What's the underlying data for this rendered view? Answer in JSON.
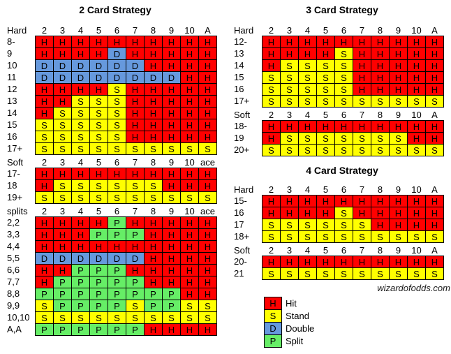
{
  "colors": {
    "H": "#FF0000",
    "S": "#FFFF00",
    "D": "#6699DD",
    "P": "#66EE66",
    "grid_border": "#000000"
  },
  "watermark": "wizardofodds.com",
  "legend": {
    "items": [
      {
        "letter": "H",
        "label": "Hit"
      },
      {
        "letter": "S",
        "label": "Stand"
      },
      {
        "letter": "D",
        "label": "Double"
      },
      {
        "letter": "P",
        "label": "Split"
      }
    ]
  },
  "chart_data": [
    {
      "type": "table",
      "title": "2 Card Strategy",
      "sections": [
        {
          "header_label": "Hard",
          "columns": [
            "2",
            "3",
            "4",
            "5",
            "6",
            "7",
            "8",
            "9",
            "10",
            "A"
          ],
          "rows": [
            {
              "label": "8-",
              "cells": [
                "H",
                "H",
                "H",
                "H",
                "H",
                "H",
                "H",
                "H",
                "H",
                "H"
              ]
            },
            {
              "label": "9",
              "cells": [
                "H",
                "H",
                "H",
                "H",
                "D",
                "H",
                "H",
                "H",
                "H",
                "H"
              ]
            },
            {
              "label": "10",
              "cells": [
                "D",
                "D",
                "D",
                "D",
                "D",
                "D",
                "H",
                "H",
                "H",
                "H"
              ]
            },
            {
              "label": "11",
              "cells": [
                "D",
                "D",
                "D",
                "D",
                "D",
                "D",
                "D",
                "D",
                "H",
                "H"
              ]
            },
            {
              "label": "12",
              "cells": [
                "H",
                "H",
                "H",
                "H",
                "S",
                "H",
                "H",
                "H",
                "H",
                "H"
              ]
            },
            {
              "label": "13",
              "cells": [
                "H",
                "H",
                "S",
                "S",
                "S",
                "H",
                "H",
                "H",
                "H",
                "H"
              ]
            },
            {
              "label": "14",
              "cells": [
                "H",
                "S",
                "S",
                "S",
                "S",
                "H",
                "H",
                "H",
                "H",
                "H"
              ]
            },
            {
              "label": "15",
              "cells": [
                "S",
                "S",
                "S",
                "S",
                "S",
                "H",
                "H",
                "H",
                "H",
                "H"
              ]
            },
            {
              "label": "16",
              "cells": [
                "S",
                "S",
                "S",
                "S",
                "S",
                "H",
                "H",
                "H",
                "H",
                "H"
              ]
            },
            {
              "label": "17+",
              "cells": [
                "S",
                "S",
                "S",
                "S",
                "S",
                "S",
                "S",
                "S",
                "S",
                "S"
              ]
            }
          ]
        },
        {
          "header_label": "Soft",
          "columns": [
            "2",
            "3",
            "4",
            "5",
            "6",
            "7",
            "8",
            "9",
            "10",
            "ace"
          ],
          "rows": [
            {
              "label": "17-",
              "cells": [
                "H",
                "H",
                "H",
                "H",
                "H",
                "H",
                "H",
                "H",
                "H",
                "H"
              ]
            },
            {
              "label": "18",
              "cells": [
                "H",
                "S",
                "S",
                "S",
                "S",
                "S",
                "S",
                "H",
                "H",
                "H"
              ]
            },
            {
              "label": "19+",
              "cells": [
                "S",
                "S",
                "S",
                "S",
                "S",
                "S",
                "S",
                "S",
                "S",
                "S"
              ]
            }
          ]
        },
        {
          "header_label": "splits",
          "columns": [
            "2",
            "3",
            "4",
            "5",
            "6",
            "7",
            "8",
            "9",
            "10",
            "ace"
          ],
          "rows": [
            {
              "label": "2,2",
              "cells": [
                "H",
                "H",
                "H",
                "H",
                "P",
                "H",
                "H",
                "H",
                "H",
                "H"
              ]
            },
            {
              "label": "3,3",
              "cells": [
                "H",
                "H",
                "H",
                "P",
                "P",
                "P",
                "H",
                "H",
                "H",
                "H"
              ]
            },
            {
              "label": "4,4",
              "cells": [
                "H",
                "H",
                "H",
                "H",
                "H",
                "H",
                "H",
                "H",
                "H",
                "H"
              ]
            },
            {
              "label": "5,5",
              "cells": [
                "D",
                "D",
                "D",
                "D",
                "D",
                "D",
                "H",
                "H",
                "H",
                "H"
              ]
            },
            {
              "label": "6,6",
              "cells": [
                "H",
                "H",
                "P",
                "P",
                "P",
                "H",
                "H",
                "H",
                "H",
                "H"
              ]
            },
            {
              "label": "7,7",
              "cells": [
                "H",
                "P",
                "P",
                "P",
                "P",
                "P",
                "H",
                "H",
                "H",
                "H"
              ]
            },
            {
              "label": "8,8",
              "cells": [
                "P",
                "P",
                "P",
                "P",
                "P",
                "P",
                "P",
                "P",
                "H",
                "H"
              ]
            },
            {
              "label": "9,9",
              "cells": [
                "S",
                "P",
                "P",
                "P",
                "P",
                "S",
                "P",
                "P",
                "S",
                "S"
              ]
            },
            {
              "label": "10,10",
              "cells": [
                "S",
                "S",
                "S",
                "S",
                "S",
                "S",
                "S",
                "S",
                "S",
                "S"
              ]
            },
            {
              "label": "A,A",
              "cells": [
                "P",
                "P",
                "P",
                "P",
                "P",
                "P",
                "H",
                "H",
                "H",
                "H"
              ]
            }
          ]
        }
      ]
    },
    {
      "type": "table",
      "title": "3 Card Strategy",
      "sections": [
        {
          "header_label": "Hard",
          "columns": [
            "2",
            "3",
            "4",
            "5",
            "6",
            "7",
            "8",
            "9",
            "10",
            "A"
          ],
          "rows": [
            {
              "label": "12-",
              "cells": [
                "H",
                "H",
                "H",
                "H",
                "H",
                "H",
                "H",
                "H",
                "H",
                "H"
              ]
            },
            {
              "label": "13",
              "cells": [
                "H",
                "H",
                "H",
                "H",
                "S",
                "H",
                "H",
                "H",
                "H",
                "H"
              ]
            },
            {
              "label": "14",
              "cells": [
                "H",
                "S",
                "S",
                "S",
                "S",
                "H",
                "H",
                "H",
                "H",
                "H"
              ]
            },
            {
              "label": "15",
              "cells": [
                "S",
                "S",
                "S",
                "S",
                "S",
                "H",
                "H",
                "H",
                "H",
                "H"
              ]
            },
            {
              "label": "16",
              "cells": [
                "S",
                "S",
                "S",
                "S",
                "S",
                "H",
                "H",
                "H",
                "H",
                "H"
              ]
            },
            {
              "label": "17+",
              "cells": [
                "S",
                "S",
                "S",
                "S",
                "S",
                "S",
                "S",
                "S",
                "S",
                "S"
              ]
            }
          ]
        },
        {
          "header_label": "Soft",
          "columns": [
            "2",
            "3",
            "4",
            "5",
            "6",
            "7",
            "8",
            "9",
            "10",
            "A"
          ],
          "rows": [
            {
              "label": "18-",
              "cells": [
                "H",
                "H",
                "H",
                "H",
                "H",
                "H",
                "H",
                "H",
                "H",
                "H"
              ]
            },
            {
              "label": "19",
              "cells": [
                "H",
                "S",
                "S",
                "S",
                "S",
                "S",
                "S",
                "S",
                "H",
                "H"
              ]
            },
            {
              "label": "20+",
              "cells": [
                "S",
                "S",
                "S",
                "S",
                "S",
                "S",
                "S",
                "S",
                "S",
                "S"
              ]
            }
          ]
        }
      ]
    },
    {
      "type": "table",
      "title": "4 Card Strategy",
      "sections": [
        {
          "header_label": "Hard",
          "columns": [
            "2",
            "3",
            "4",
            "5",
            "6",
            "7",
            "8",
            "9",
            "10",
            "A"
          ],
          "rows": [
            {
              "label": "15-",
              "cells": [
                "H",
                "H",
                "H",
                "H",
                "H",
                "H",
                "H",
                "H",
                "H",
                "H"
              ]
            },
            {
              "label": "16",
              "cells": [
                "H",
                "H",
                "H",
                "H",
                "S",
                "H",
                "H",
                "H",
                "H",
                "H"
              ]
            },
            {
              "label": "17",
              "cells": [
                "S",
                "S",
                "S",
                "S",
                "S",
                "S",
                "H",
                "H",
                "H",
                "H"
              ]
            },
            {
              "label": "18+",
              "cells": [
                "S",
                "S",
                "S",
                "S",
                "S",
                "S",
                "S",
                "S",
                "S",
                "S"
              ]
            }
          ]
        },
        {
          "header_label": "Soft",
          "columns": [
            "2",
            "3",
            "4",
            "5",
            "6",
            "7",
            "8",
            "9",
            "10",
            "A"
          ],
          "rows": [
            {
              "label": "20-",
              "cells": [
                "H",
                "H",
                "H",
                "H",
                "H",
                "H",
                "H",
                "H",
                "H",
                "H"
              ]
            },
            {
              "label": "21",
              "cells": [
                "S",
                "S",
                "S",
                "S",
                "S",
                "S",
                "S",
                "S",
                "S",
                "S"
              ]
            }
          ]
        }
      ]
    }
  ]
}
